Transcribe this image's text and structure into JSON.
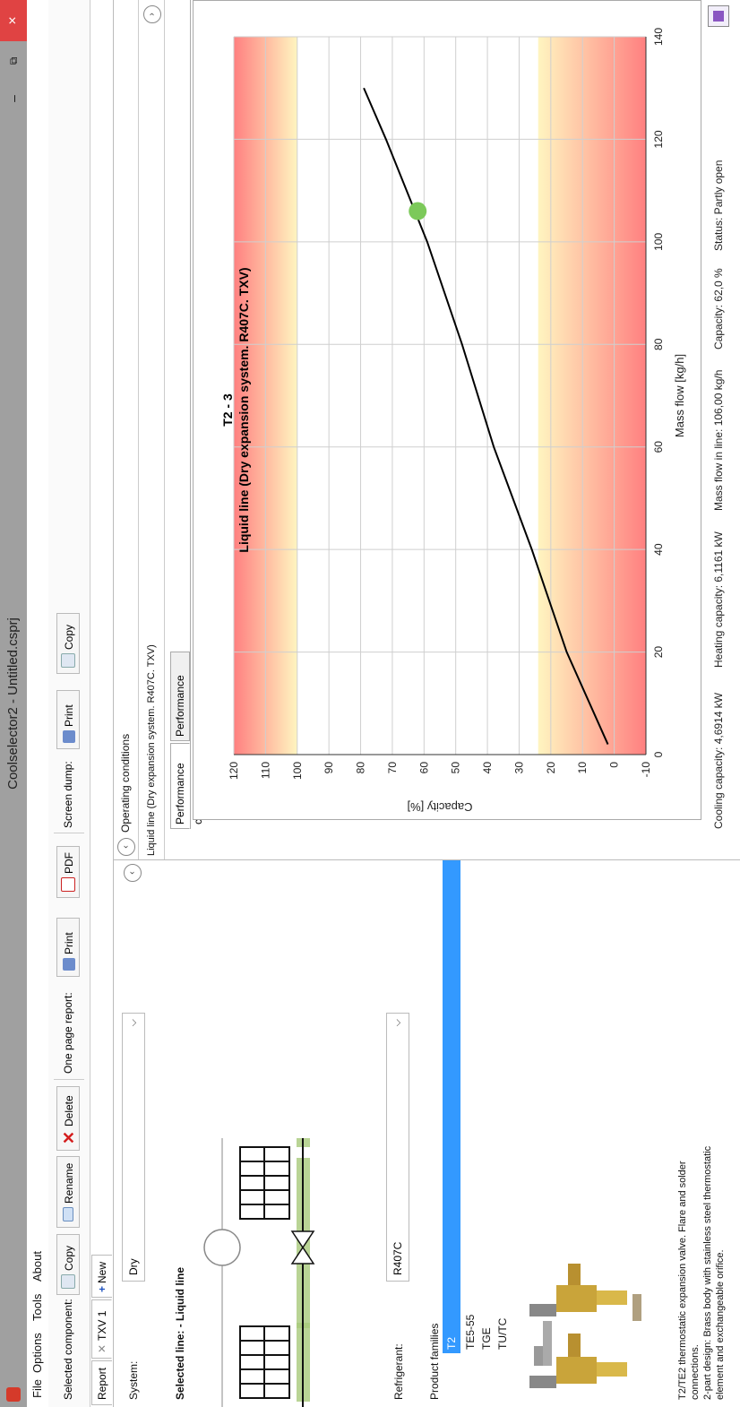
{
  "window": {
    "title": "Coolselector2 - Untitled.csprj",
    "close": "×",
    "maximize": "⧉",
    "minimize": "–"
  },
  "menu": [
    "File",
    "Options",
    "Tools",
    "About"
  ],
  "toolbar": {
    "selected_component_label": "Selected component:",
    "copy": "Copy",
    "rename": "Rename",
    "delete": "Delete",
    "one_page_report_label": "One page report:",
    "print": "Print",
    "pdf": "PDF",
    "screen_dump_label": "Screen dump:",
    "print2": "Print",
    "copy2": "Copy"
  },
  "tabs": {
    "report": "Report",
    "txv": "TXV 1",
    "new": "New"
  },
  "left": {
    "system_label": "System:",
    "system_value": "Dry",
    "selected_line": "Selected line: - Liquid line",
    "refrigerant_label": "Refrigerant:",
    "refrigerant_value": "R407C",
    "product_families_label": "Product families",
    "families": [
      "T2",
      "TE5-55",
      "TGE",
      "TU/TC"
    ],
    "selected_family": "T2",
    "description": [
      "T2/TE2 thermostatic expansion valve. Flare and solder",
      "connections.",
      "2-part design: Brass body with stainless steel thermostatic",
      "element and exchangeable orifice."
    ]
  },
  "right": {
    "operating_conditions": "Operating conditions",
    "line_header": "Liquid line (Dry expansion system. R407C. TXV)",
    "tab_perf_curve": "Performance curve",
    "tab_perf_details": "Performance details"
  },
  "chart_data": {
    "type": "line",
    "title": "T2 - 3",
    "subtitle": "Liquid line (Dry expansion system. R407C. TXV)",
    "xlabel": "Mass flow [kg/h]",
    "ylabel": "Capacity [%]",
    "xlim": [
      0,
      140
    ],
    "ylim": [
      -10,
      120
    ],
    "xticks": [
      0,
      20,
      40,
      60,
      80,
      100,
      120,
      140
    ],
    "yticks": [
      -10,
      0,
      10,
      20,
      30,
      40,
      50,
      60,
      70,
      80,
      90,
      100,
      110,
      120
    ],
    "grid": true,
    "bands": [
      {
        "from": 100,
        "to": 120,
        "shade": "red-to-yellow-up"
      },
      {
        "from": -10,
        "to": 24,
        "shade": "red-to-yellow-down"
      }
    ],
    "series": [
      {
        "x": [
          2,
          20,
          40,
          60,
          80,
          100,
          120,
          130
        ],
        "y": [
          2,
          15,
          26,
          38,
          48,
          59,
          72,
          79
        ]
      }
    ],
    "operating_point": {
      "x": 106,
      "y": 62
    },
    "colors": {
      "line": "#000000",
      "point": "#7cc95a",
      "band_red": "#ff8080",
      "band_yellow": "#fff5c0"
    }
  },
  "status_bar": {
    "cooling": "Cooling capacity: 4,6914 kW",
    "heating": "Heating capacity: 6,1161 kW",
    "massflow": "Mass flow in line: 106,00 kg/h",
    "capacity": "Capacity: 62,0 %",
    "status": "Status: Partly open"
  }
}
